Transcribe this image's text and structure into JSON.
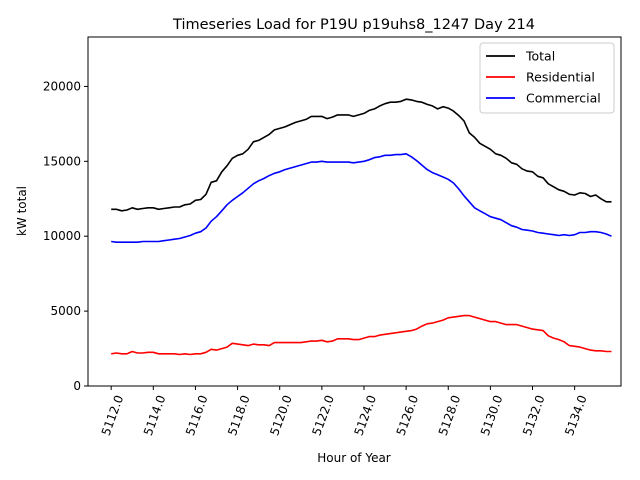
{
  "chart_data": {
    "type": "line",
    "title": "Timeseries Load for P19U p19uhs8_1247  Day 214",
    "xlabel": "Hour of Year",
    "ylabel": "kW total",
    "xlim": [
      5110.9,
      5136.2
    ],
    "ylim": [
      0,
      23300
    ],
    "xticks": [
      5112,
      5114,
      5116,
      5118,
      5120,
      5122,
      5124,
      5126,
      5128,
      5130,
      5132,
      5134
    ],
    "xtick_labels": [
      "5112.0",
      "5114.0",
      "5116.0",
      "5118.0",
      "5120.0",
      "5122.0",
      "5124.0",
      "5126.0",
      "5128.0",
      "5130.0",
      "5132.0",
      "5134.0"
    ],
    "yticks": [
      0,
      5000,
      10000,
      15000,
      20000
    ],
    "ytick_labels": [
      "0",
      "5000",
      "10000",
      "15000",
      "20000"
    ],
    "grid": false,
    "legend_position": "top-right",
    "x": [
      5112.0,
      5112.25,
      5112.5,
      5112.75,
      5113.0,
      5113.25,
      5113.5,
      5113.75,
      5114.0,
      5114.25,
      5114.5,
      5114.75,
      5115.0,
      5115.25,
      5115.5,
      5115.75,
      5116.0,
      5116.25,
      5116.5,
      5116.75,
      5117.0,
      5117.25,
      5117.5,
      5117.75,
      5118.0,
      5118.25,
      5118.5,
      5118.75,
      5119.0,
      5119.25,
      5119.5,
      5119.75,
      5120.0,
      5120.25,
      5120.5,
      5120.75,
      5121.0,
      5121.25,
      5121.5,
      5121.75,
      5122.0,
      5122.25,
      5122.5,
      5122.75,
      5123.0,
      5123.25,
      5123.5,
      5123.75,
      5124.0,
      5124.25,
      5124.5,
      5124.75,
      5125.0,
      5125.25,
      5125.5,
      5125.75,
      5126.0,
      5126.25,
      5126.5,
      5126.75,
      5127.0,
      5127.25,
      5127.5,
      5127.75,
      5128.0,
      5128.25,
      5128.5,
      5128.75,
      5129.0,
      5129.25,
      5129.5,
      5129.75,
      5130.0,
      5130.25,
      5130.5,
      5130.75,
      5131.0,
      5131.25,
      5131.5,
      5131.75,
      5132.0,
      5132.25,
      5132.5,
      5132.75,
      5133.0,
      5133.25,
      5133.5,
      5133.75,
      5134.0,
      5134.25,
      5134.5,
      5134.75,
      5135.0,
      5135.25,
      5135.5,
      5135.75
    ],
    "series": [
      {
        "name": "Total",
        "color": "#000000",
        "values": [
          11800,
          11800,
          11700,
          11750,
          11900,
          11800,
          11850,
          11900,
          11900,
          11800,
          11850,
          11900,
          11950,
          11950,
          12100,
          12150,
          12400,
          12450,
          12800,
          13600,
          13700,
          14300,
          14700,
          15200,
          15400,
          15500,
          15800,
          16300,
          16400,
          16600,
          16800,
          17100,
          17200,
          17300,
          17450,
          17600,
          17700,
          17800,
          18000,
          18000,
          18000,
          17850,
          17950,
          18100,
          18100,
          18100,
          18000,
          18100,
          18200,
          18400,
          18500,
          18700,
          18850,
          18950,
          18950,
          19000,
          19150,
          19100,
          19000,
          18950,
          18800,
          18700,
          18500,
          18650,
          18550,
          18350,
          18050,
          17700,
          16900,
          16600,
          16200,
          16000,
          15800,
          15500,
          15400,
          15200,
          14900,
          14800,
          14500,
          14350,
          14300,
          14000,
          13900,
          13500,
          13300,
          13100,
          13000,
          12800,
          12750,
          12900,
          12850,
          12650,
          12750,
          12500,
          12300,
          12300
        ]
      },
      {
        "name": "Residential",
        "color": "#ff0000",
        "values": [
          2150,
          2200,
          2150,
          2150,
          2300,
          2200,
          2200,
          2250,
          2250,
          2150,
          2150,
          2150,
          2150,
          2100,
          2150,
          2100,
          2150,
          2150,
          2250,
          2450,
          2400,
          2500,
          2600,
          2850,
          2800,
          2750,
          2700,
          2800,
          2750,
          2750,
          2700,
          2900,
          2900,
          2900,
          2900,
          2900,
          2900,
          2950,
          3000,
          3000,
          3050,
          2950,
          3000,
          3150,
          3150,
          3150,
          3100,
          3100,
          3200,
          3300,
          3300,
          3400,
          3450,
          3500,
          3550,
          3600,
          3650,
          3700,
          3800,
          4000,
          4150,
          4200,
          4300,
          4400,
          4550,
          4600,
          4650,
          4700,
          4700,
          4600,
          4500,
          4400,
          4300,
          4300,
          4200,
          4100,
          4100,
          4100,
          4000,
          3900,
          3800,
          3750,
          3700,
          3350,
          3200,
          3100,
          2950,
          2700,
          2650,
          2600,
          2500,
          2400,
          2350,
          2350,
          2300,
          2300
        ]
      },
      {
        "name": "Commercial",
        "color": "#0000ff",
        "values": [
          9650,
          9600,
          9600,
          9600,
          9600,
          9600,
          9650,
          9650,
          9650,
          9650,
          9700,
          9750,
          9800,
          9850,
          9950,
          10050,
          10200,
          10300,
          10550,
          11000,
          11300,
          11700,
          12100,
          12400,
          12650,
          12900,
          13200,
          13500,
          13700,
          13850,
          14050,
          14200,
          14300,
          14450,
          14550,
          14650,
          14750,
          14850,
          14950,
          14950,
          15000,
          14950,
          14950,
          14950,
          14950,
          14950,
          14900,
          14950,
          15000,
          15100,
          15250,
          15300,
          15400,
          15400,
          15450,
          15450,
          15500,
          15300,
          15050,
          14750,
          14450,
          14250,
          14100,
          13950,
          13800,
          13550,
          13150,
          12700,
          12300,
          11900,
          11700,
          11500,
          11300,
          11200,
          11100,
          10900,
          10700,
          10600,
          10450,
          10400,
          10350,
          10250,
          10200,
          10150,
          10100,
          10050,
          10100,
          10050,
          10100,
          10250,
          10250,
          10300,
          10300,
          10250,
          10150,
          10000
        ]
      }
    ]
  }
}
